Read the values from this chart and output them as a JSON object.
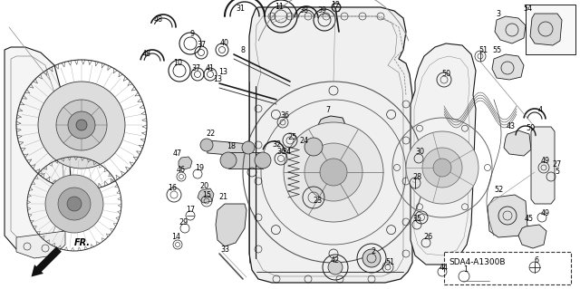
{
  "fig_width": 6.4,
  "fig_height": 3.19,
  "dpi": 100,
  "background_color": "#ffffff",
  "text_color": "#000000",
  "diagram_code": "SDA4-A1300B",
  "line_color": "#1a1a1a",
  "gray_fill": "#888888",
  "light_gray": "#cccccc",
  "dark_gray": "#444444"
}
